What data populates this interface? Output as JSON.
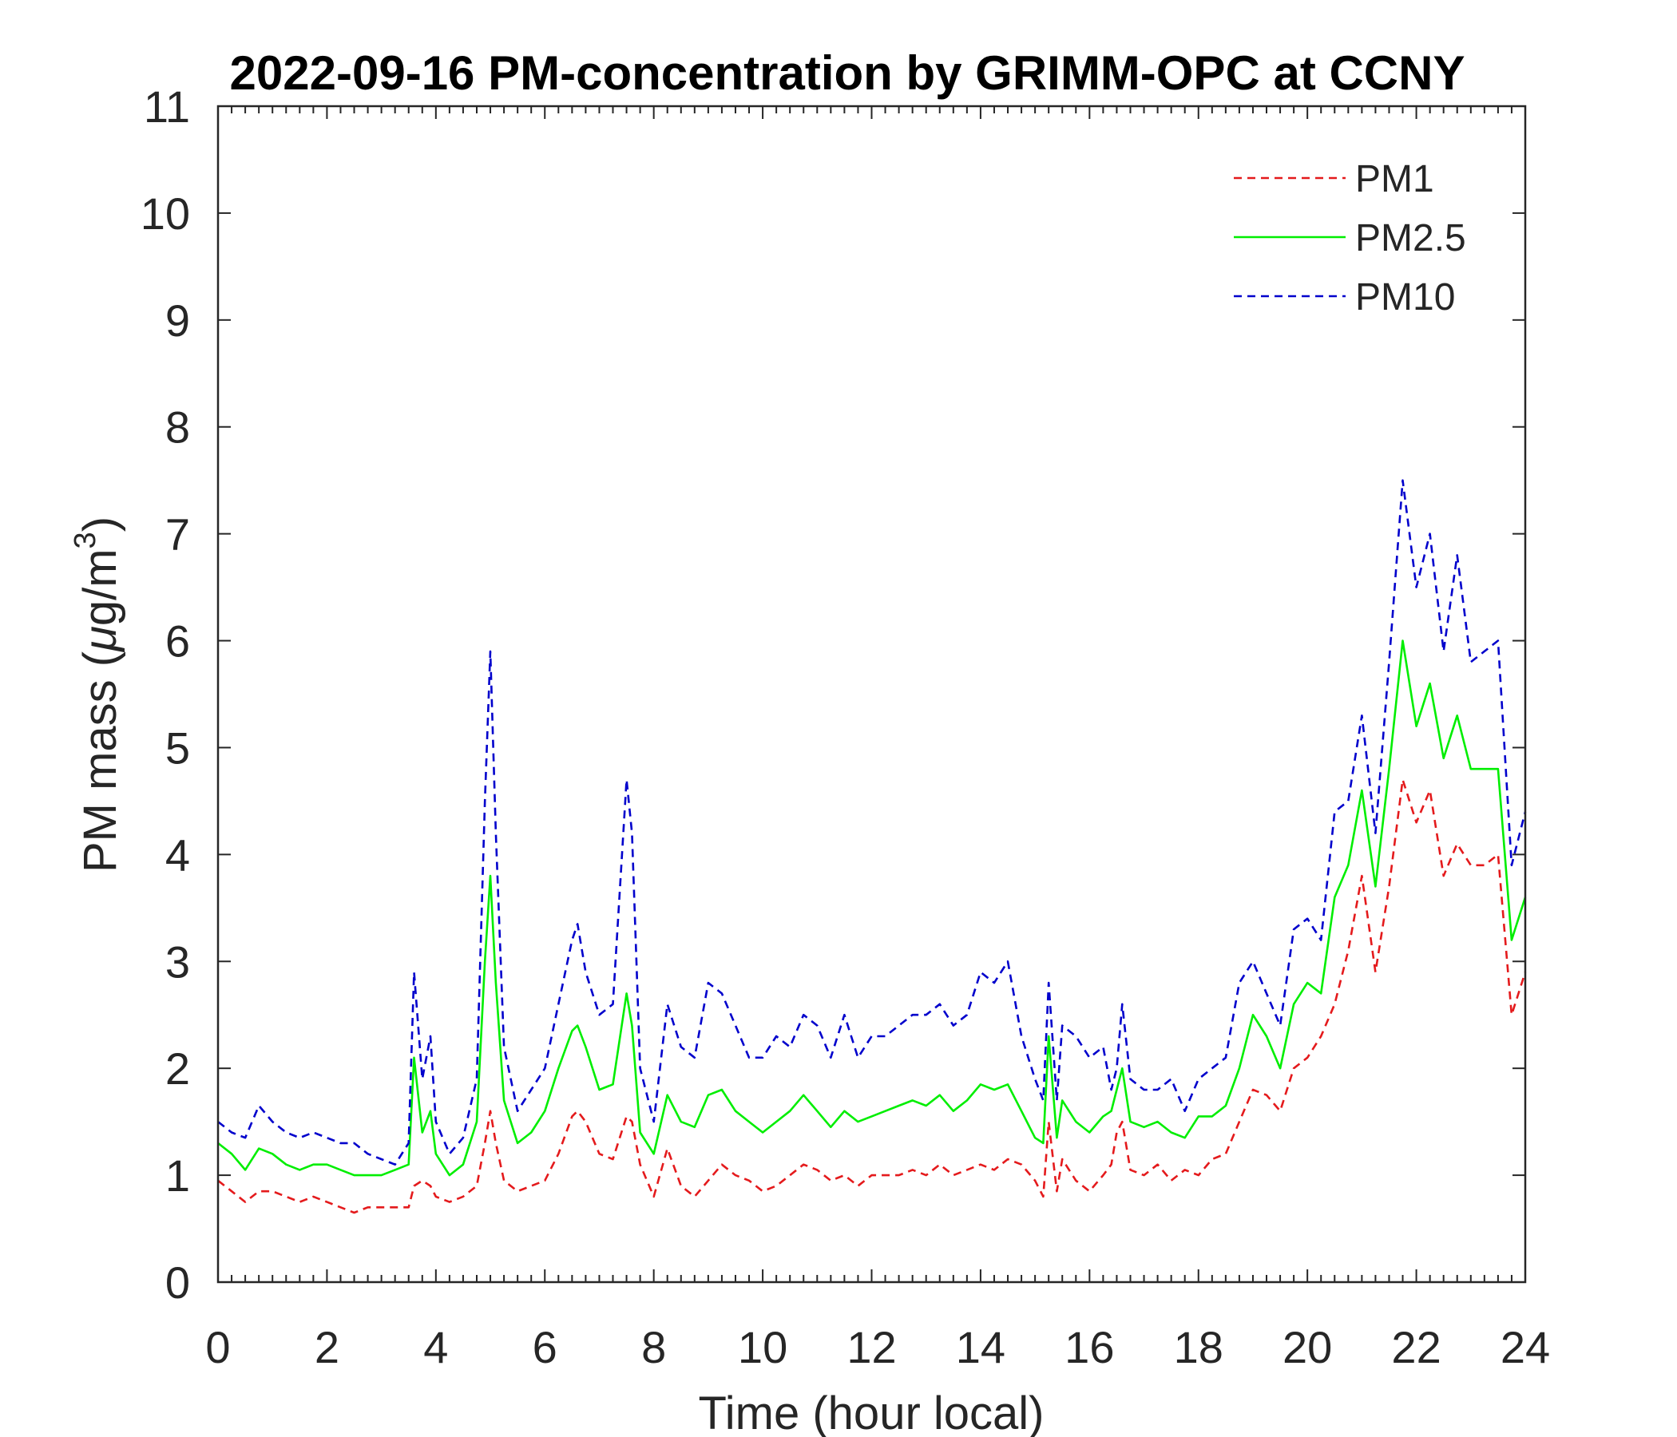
{
  "chart_data": {
    "type": "line",
    "title": "2022-09-16 PM-concentration by GRIMM-OPC at CCNY",
    "xlabel": "Time (hour local)",
    "ylabel_main": "PM mass (",
    "ylabel_mu": "μ",
    "ylabel_unit": "g/m",
    "ylabel_sup": "3",
    "ylabel_close": ")",
    "xlim": [
      0,
      24
    ],
    "ylim": [
      0,
      11
    ],
    "x_ticks": [
      0,
      2,
      4,
      6,
      8,
      10,
      12,
      14,
      16,
      18,
      20,
      22,
      24
    ],
    "y_ticks": [
      0,
      1,
      2,
      3,
      4,
      5,
      6,
      7,
      8,
      9,
      10,
      11
    ],
    "x_tick_labels": [
      "0",
      "2",
      "4",
      "6",
      "8",
      "10",
      "12",
      "14",
      "16",
      "18",
      "20",
      "22",
      "24"
    ],
    "y_tick_labels": [
      "0",
      "1",
      "2",
      "3",
      "4",
      "5",
      "6",
      "7",
      "8",
      "9",
      "10",
      "11"
    ],
    "legend_position": "top-right",
    "grid": false,
    "x": [
      0,
      0.25,
      0.5,
      0.75,
      1,
      1.25,
      1.5,
      1.75,
      2,
      2.25,
      2.5,
      2.75,
      3,
      3.25,
      3.5,
      3.6,
      3.75,
      3.9,
      4,
      4.25,
      4.5,
      4.75,
      4.9,
      5,
      5.1,
      5.25,
      5.5,
      5.75,
      6,
      6.25,
      6.5,
      6.6,
      6.75,
      7,
      7.25,
      7.5,
      7.6,
      7.75,
      8,
      8.25,
      8.5,
      8.75,
      9,
      9.25,
      9.5,
      9.75,
      10,
      10.25,
      10.5,
      10.75,
      11,
      11.25,
      11.5,
      11.75,
      12,
      12.25,
      12.5,
      12.75,
      13,
      13.25,
      13.5,
      13.75,
      14,
      14.25,
      14.5,
      14.75,
      15,
      15.15,
      15.25,
      15.4,
      15.5,
      15.75,
      16,
      16.25,
      16.4,
      16.5,
      16.6,
      16.75,
      17,
      17.25,
      17.5,
      17.75,
      18,
      18.25,
      18.5,
      18.75,
      19,
      19.25,
      19.5,
      19.75,
      20,
      20.25,
      20.5,
      20.75,
      21,
      21.25,
      21.5,
      21.75,
      22,
      22.25,
      22.5,
      22.75,
      23,
      23.25,
      23.5,
      23.75,
      24
    ],
    "series": [
      {
        "name": "PM1",
        "color": "#e41a1c",
        "dash": "dashed",
        "values": [
          0.95,
          0.85,
          0.75,
          0.85,
          0.85,
          0.8,
          0.75,
          0.8,
          0.75,
          0.7,
          0.65,
          0.7,
          0.7,
          0.7,
          0.7,
          0.9,
          0.95,
          0.9,
          0.8,
          0.75,
          0.8,
          0.9,
          1.3,
          1.6,
          1.3,
          0.95,
          0.85,
          0.9,
          0.95,
          1.2,
          1.55,
          1.6,
          1.5,
          1.2,
          1.15,
          1.55,
          1.5,
          1.1,
          0.8,
          1.25,
          0.9,
          0.8,
          0.95,
          1.1,
          1.0,
          0.95,
          0.85,
          0.9,
          1.0,
          1.1,
          1.05,
          0.95,
          1.0,
          0.9,
          1.0,
          1.0,
          1.0,
          1.05,
          1.0,
          1.1,
          1.0,
          1.05,
          1.1,
          1.05,
          1.15,
          1.1,
          0.95,
          0.8,
          1.5,
          0.85,
          1.15,
          0.95,
          0.85,
          1.0,
          1.1,
          1.4,
          1.5,
          1.05,
          1.0,
          1.1,
          0.95,
          1.05,
          1.0,
          1.15,
          1.2,
          1.5,
          1.8,
          1.75,
          1.6,
          2.0,
          2.1,
          2.3,
          2.6,
          3.1,
          3.8,
          2.9,
          3.7,
          4.7,
          4.3,
          4.6,
          3.8,
          4.1,
          3.9,
          3.9,
          4.0,
          2.5,
          2.9
        ],
        "label": "PM1"
      },
      {
        "name": "PM2.5",
        "color": "#00ee00",
        "dash": "solid",
        "values": [
          1.3,
          1.2,
          1.05,
          1.25,
          1.2,
          1.1,
          1.05,
          1.1,
          1.1,
          1.05,
          1.0,
          1.0,
          1.0,
          1.05,
          1.1,
          2.1,
          1.4,
          1.6,
          1.2,
          1.0,
          1.1,
          1.5,
          3.0,
          3.8,
          2.8,
          1.7,
          1.3,
          1.4,
          1.6,
          2.0,
          2.35,
          2.4,
          2.2,
          1.8,
          1.85,
          2.7,
          2.4,
          1.4,
          1.2,
          1.75,
          1.5,
          1.45,
          1.75,
          1.8,
          1.6,
          1.5,
          1.4,
          1.5,
          1.6,
          1.75,
          1.6,
          1.45,
          1.6,
          1.5,
          1.55,
          1.6,
          1.65,
          1.7,
          1.65,
          1.75,
          1.6,
          1.7,
          1.85,
          1.8,
          1.85,
          1.6,
          1.35,
          1.3,
          2.3,
          1.35,
          1.7,
          1.5,
          1.4,
          1.55,
          1.6,
          1.8,
          2.0,
          1.5,
          1.45,
          1.5,
          1.4,
          1.35,
          1.55,
          1.55,
          1.65,
          2.0,
          2.5,
          2.3,
          2.0,
          2.6,
          2.8,
          2.7,
          3.6,
          3.9,
          4.6,
          3.7,
          4.8,
          6.0,
          5.2,
          5.6,
          4.9,
          5.3,
          4.8,
          4.8,
          4.8,
          3.2,
          3.6
        ],
        "label": "PM2.5"
      },
      {
        "name": "PM10",
        "color": "#0000cc",
        "dash": "dashed",
        "values": [
          1.5,
          1.4,
          1.35,
          1.65,
          1.5,
          1.4,
          1.35,
          1.4,
          1.35,
          1.3,
          1.3,
          1.2,
          1.15,
          1.1,
          1.3,
          2.9,
          1.9,
          2.3,
          1.5,
          1.2,
          1.35,
          1.9,
          4.5,
          5.9,
          4.2,
          2.2,
          1.6,
          1.8,
          2.0,
          2.6,
          3.2,
          3.35,
          2.9,
          2.5,
          2.6,
          4.7,
          4.2,
          2.0,
          1.5,
          2.6,
          2.2,
          2.1,
          2.8,
          2.7,
          2.4,
          2.1,
          2.1,
          2.3,
          2.2,
          2.5,
          2.4,
          2.1,
          2.5,
          2.1,
          2.3,
          2.3,
          2.4,
          2.5,
          2.5,
          2.6,
          2.4,
          2.5,
          2.9,
          2.8,
          3.0,
          2.3,
          1.9,
          1.7,
          2.8,
          1.7,
          2.4,
          2.3,
          2.1,
          2.2,
          1.8,
          2.0,
          2.6,
          1.9,
          1.8,
          1.8,
          1.9,
          1.6,
          1.9,
          2.0,
          2.1,
          2.8,
          3.0,
          2.7,
          2.4,
          3.3,
          3.4,
          3.2,
          4.4,
          4.5,
          5.3,
          4.2,
          5.8,
          7.5,
          6.5,
          7.0,
          5.9,
          6.8,
          5.8,
          5.9,
          6.0,
          3.9,
          4.4
        ],
        "label": "PM10"
      }
    ]
  }
}
